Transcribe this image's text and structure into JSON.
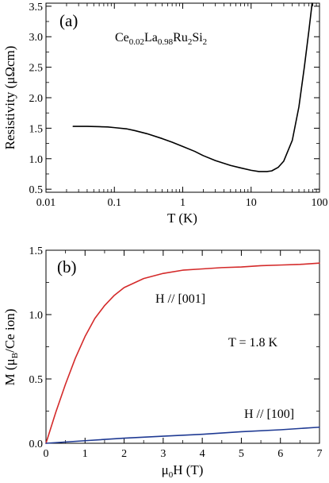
{
  "chart_data": [
    {
      "type": "line",
      "panel_label": "(a)",
      "annotation": {
        "base": "Ce",
        "s1": "0.02",
        "mid": "La",
        "s2": "0.98",
        "tail": "Ru",
        "s3": "2",
        "tail2": "Si",
        "s4": "2"
      },
      "xlabel": "T  (K)",
      "ylabel": "Resistivity  (μΩcm)",
      "xscale": "log",
      "xlim": [
        0.01,
        100
      ],
      "ylim": [
        0.45,
        3.55
      ],
      "xticks": [
        0.01,
        0.1,
        1,
        10,
        100
      ],
      "xtick_labels": [
        "0.01",
        "0.1",
        "1",
        "10",
        "100"
      ],
      "yticks": [
        0.5,
        1.0,
        1.5,
        2.0,
        2.5,
        3.0,
        3.5
      ],
      "ytick_labels": [
        "0.5",
        "1.0",
        "1.5",
        "2.0",
        "2.5",
        "3.0",
        "3.5"
      ],
      "grid": false,
      "series": [
        {
          "color": "#000000",
          "x": [
            0.025,
            0.04,
            0.06,
            0.08,
            0.1,
            0.15,
            0.2,
            0.3,
            0.5,
            0.7,
            1.0,
            1.5,
            2,
            3,
            5,
            7,
            10,
            13,
            17,
            20,
            25,
            30,
            40,
            50,
            60,
            70,
            78
          ],
          "y": [
            1.53,
            1.53,
            1.525,
            1.52,
            1.51,
            1.49,
            1.46,
            1.41,
            1.33,
            1.27,
            1.2,
            1.12,
            1.05,
            0.97,
            0.89,
            0.85,
            0.81,
            0.79,
            0.79,
            0.8,
            0.86,
            0.96,
            1.3,
            1.85,
            2.5,
            3.1,
            3.55
          ]
        }
      ]
    },
    {
      "type": "line",
      "panel_label": "(b)",
      "xlabel_parts": {
        "mu": "μ",
        "sub": "0",
        "rest": "H (T)"
      },
      "ylabel_parts": {
        "pre": "M (μ",
        "sub": "B",
        "post": "/Ce ion)"
      },
      "xlim": [
        0,
        7
      ],
      "ylim": [
        0,
        1.5
      ],
      "xticks": [
        0,
        1,
        2,
        3,
        4,
        5,
        6,
        7
      ],
      "xtick_labels": [
        "0",
        "1",
        "2",
        "3",
        "4",
        "5",
        "6",
        "7"
      ],
      "yticks": [
        0,
        0.5,
        1.0,
        1.5
      ],
      "ytick_labels": [
        "0.0",
        "0.5",
        "1.0",
        "1.5"
      ],
      "grid": false,
      "annotations": [
        "H // [001]",
        "T = 1.8 K",
        "H // [100]"
      ],
      "series": [
        {
          "name": "H // [001]",
          "color": "#d42a2a",
          "x": [
            0,
            0.25,
            0.5,
            0.75,
            1.0,
            1.25,
            1.5,
            1.75,
            2.0,
            2.5,
            3.0,
            3.5,
            4.0,
            4.5,
            5.0,
            5.5,
            6.0,
            6.5,
            7.0
          ],
          "y": [
            0,
            0.24,
            0.46,
            0.66,
            0.83,
            0.97,
            1.07,
            1.15,
            1.21,
            1.28,
            1.32,
            1.345,
            1.355,
            1.365,
            1.37,
            1.38,
            1.385,
            1.39,
            1.4
          ]
        },
        {
          "name": "H // [100]",
          "color": "#1f3a93",
          "x": [
            0,
            1,
            2,
            3,
            4,
            5,
            6,
            7
          ],
          "y": [
            0,
            0.02,
            0.04,
            0.055,
            0.07,
            0.09,
            0.105,
            0.125
          ]
        }
      ]
    }
  ]
}
